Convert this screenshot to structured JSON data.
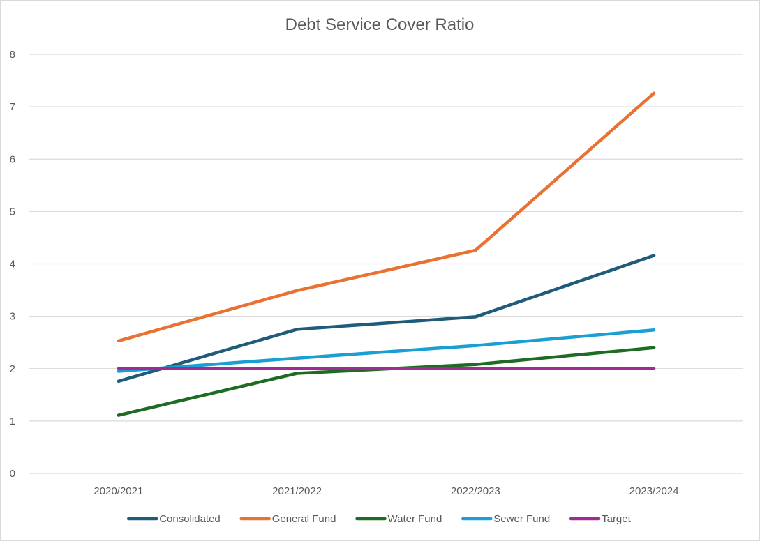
{
  "chart_data": {
    "type": "line",
    "title": "Debt Service Cover Ratio",
    "xlabel": "",
    "ylabel": "",
    "categories": [
      "2020/2021",
      "2021/2022",
      "2022/2023",
      "2023/2024"
    ],
    "ylim": [
      0,
      8
    ],
    "yticks": [
      "0",
      "1",
      "2",
      "3",
      "4",
      "5",
      "6",
      "7",
      "8"
    ],
    "grid": true,
    "legend_position": "bottom",
    "series": [
      {
        "name": "Consolidated",
        "color": "#1f5c7a",
        "values": [
          1.76,
          2.75,
          2.99,
          4.16
        ]
      },
      {
        "name": "General Fund",
        "color": "#e97132",
        "values": [
          2.53,
          3.49,
          4.26,
          7.26
        ]
      },
      {
        "name": "Water Fund",
        "color": "#1e6b24",
        "values": [
          1.11,
          1.91,
          2.08,
          2.4
        ]
      },
      {
        "name": "Sewer Fund",
        "color": "#1a9fd4",
        "values": [
          1.95,
          2.2,
          2.44,
          2.74
        ]
      },
      {
        "name": "Target",
        "color": "#a02b93",
        "values": [
          2.0,
          2.0,
          2.0,
          2.0
        ]
      }
    ]
  }
}
